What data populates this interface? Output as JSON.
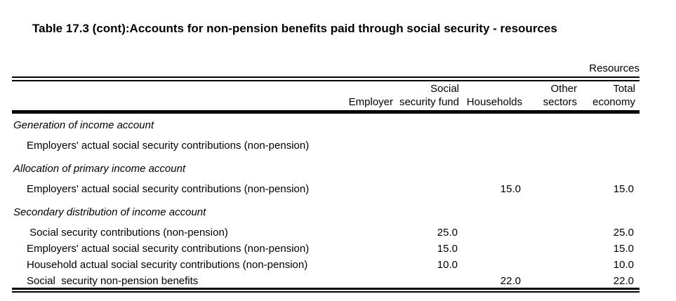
{
  "title": "Table 17.3 (cont):Accounts for non-pension benefits paid through social security - resources",
  "table": {
    "corner_label": "Resources",
    "columns": [
      {
        "line1": "",
        "line2": "Employer"
      },
      {
        "line1": "Social",
        "line2": "security fund"
      },
      {
        "line1": "",
        "line2": "Households"
      },
      {
        "line1": "Other",
        "line2": "sectors"
      },
      {
        "line1": "Total",
        "line2": "economy"
      }
    ],
    "rows": [
      {
        "type": "section",
        "label": "Generation of income account",
        "values": [
          "",
          "",
          "",
          "",
          ""
        ]
      },
      {
        "type": "item",
        "label": "Employers' actual social security contributions (non-pension)",
        "values": [
          "",
          "",
          "",
          "",
          ""
        ]
      },
      {
        "type": "section",
        "label": "Allocation of primary income account",
        "values": [
          "",
          "",
          "",
          "",
          ""
        ]
      },
      {
        "type": "item",
        "label": "Employers' actual social security contributions (non-pension)",
        "values": [
          "",
          "",
          "15.0",
          "",
          "15.0"
        ]
      },
      {
        "type": "section",
        "label": "Secondary distribution of income account",
        "values": [
          "",
          "",
          "",
          "",
          ""
        ]
      },
      {
        "type": "item",
        "label": " Social security contributions (non-pension)",
        "values": [
          "",
          "25.0",
          "",
          "",
          "25.0"
        ]
      },
      {
        "type": "item",
        "label": "Employers' actual social security contributions (non-pension)",
        "values": [
          "",
          "15.0",
          "",
          "",
          "15.0"
        ]
      },
      {
        "type": "item",
        "label": "Household actual social security contributions (non-pension)",
        "values": [
          "",
          "10.0",
          "",
          "",
          "10.0"
        ]
      },
      {
        "type": "item",
        "label": "Social  security non-pension benefits",
        "values": [
          "",
          "",
          "22.0",
          "",
          "22.0"
        ]
      }
    ]
  }
}
